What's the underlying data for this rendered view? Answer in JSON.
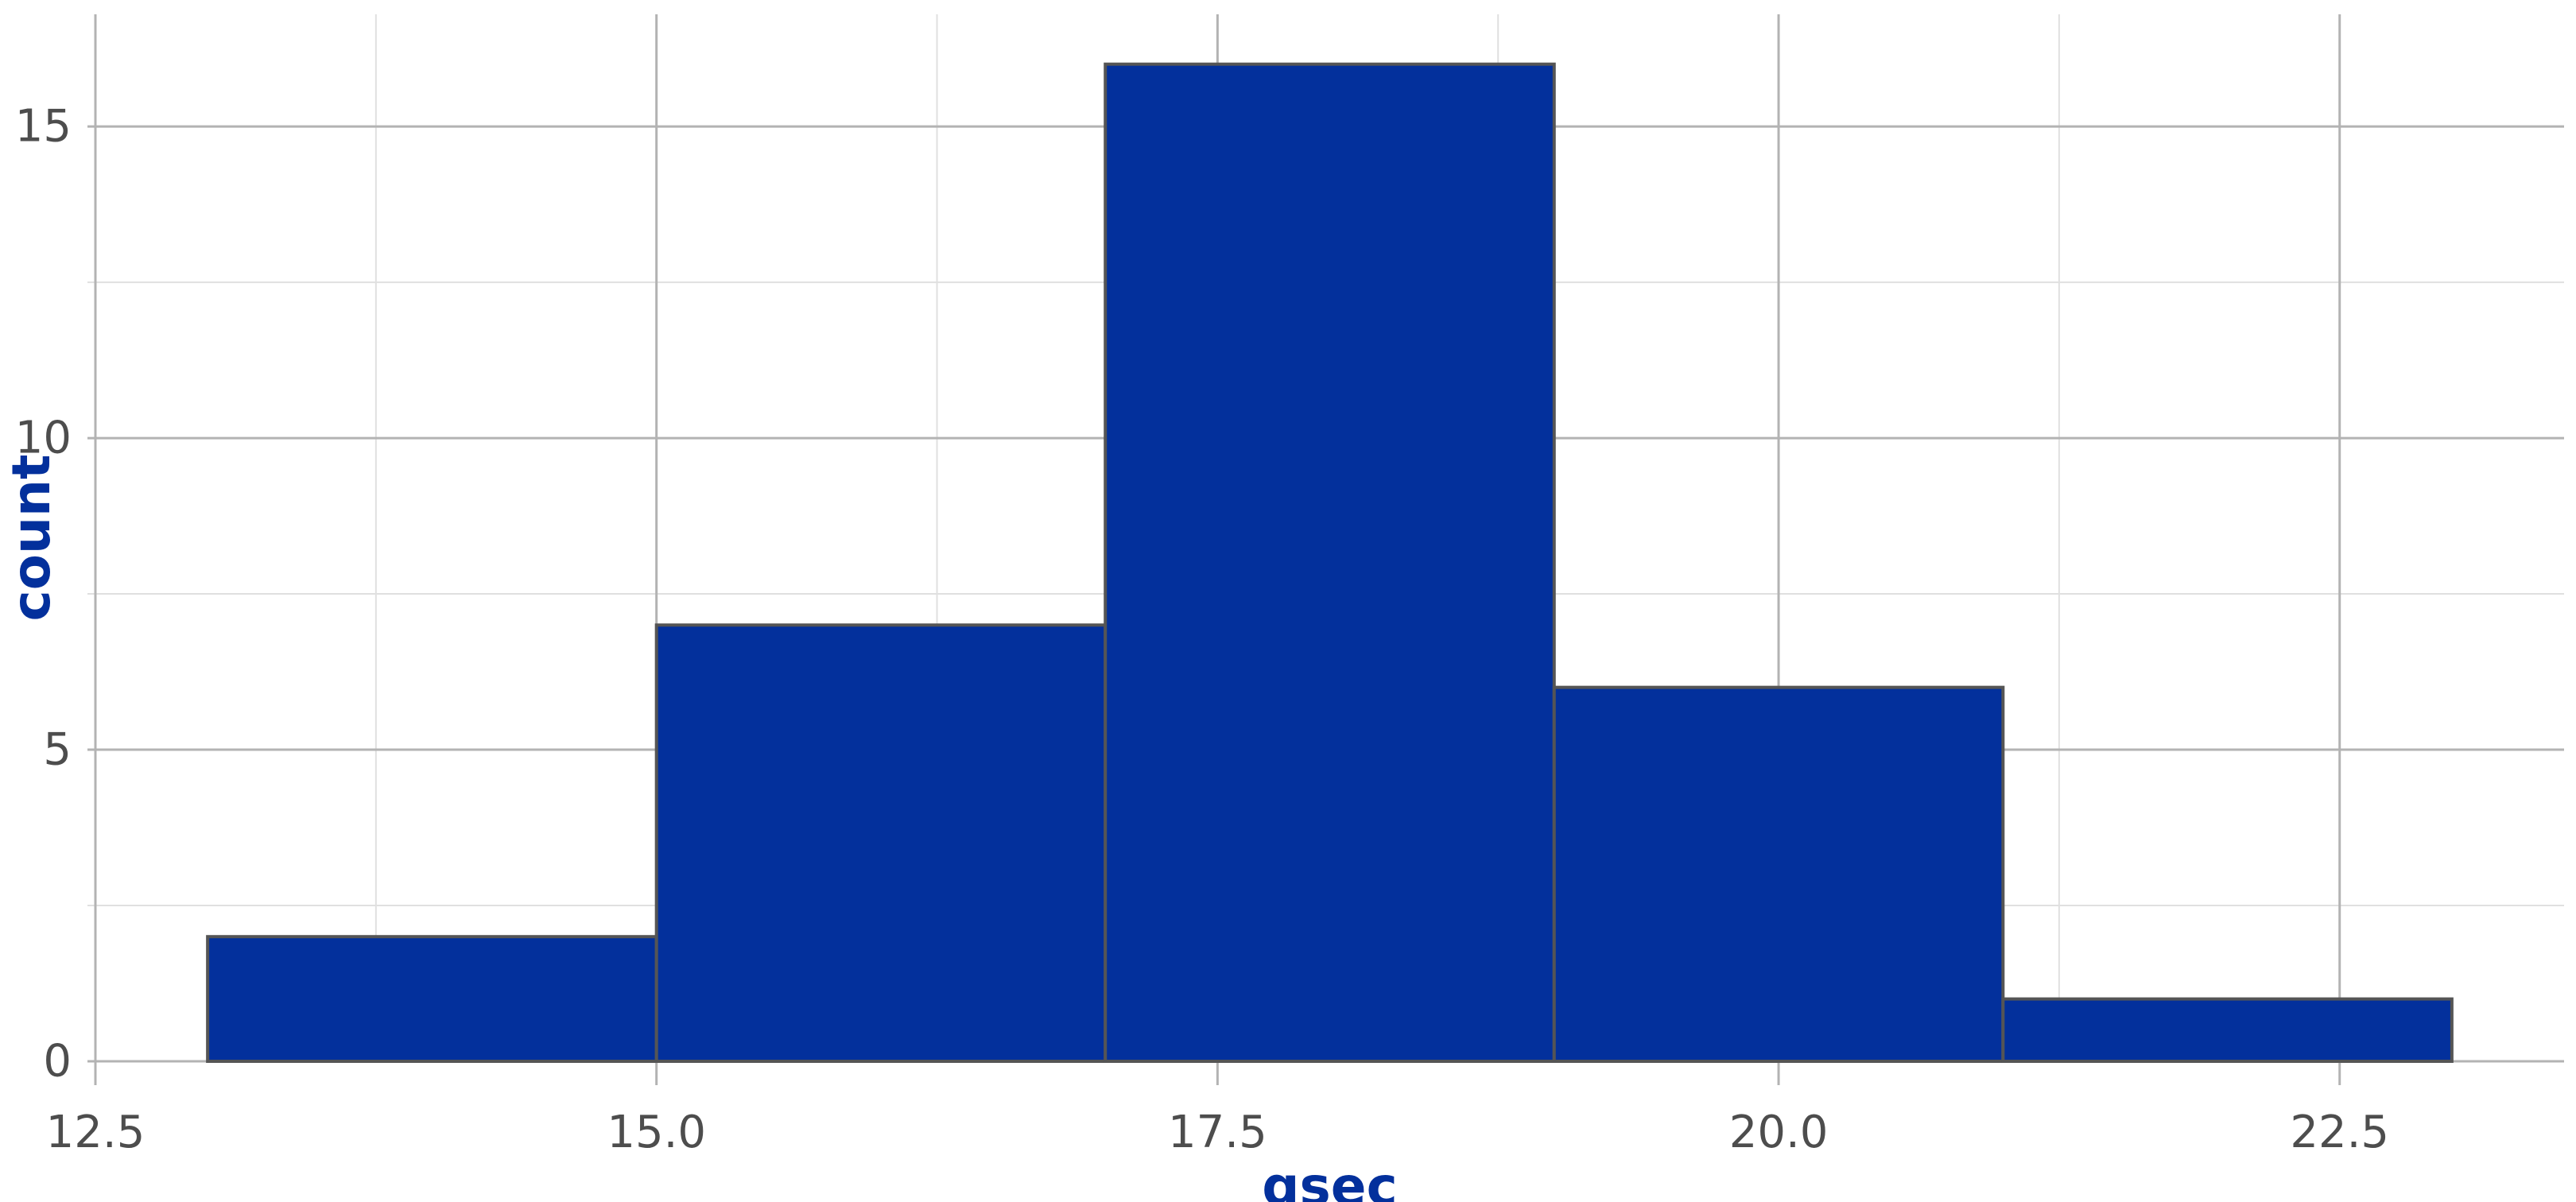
{
  "chart_data": {
    "type": "bar",
    "histogram": true,
    "x_label": "qsec",
    "y_label": "count",
    "bins": [
      {
        "start": 13,
        "end": 15,
        "count": 2
      },
      {
        "start": 15,
        "end": 17,
        "count": 7
      },
      {
        "start": 17,
        "end": 19,
        "count": 16
      },
      {
        "start": 19,
        "end": 21,
        "count": 6
      },
      {
        "start": 21,
        "end": 23,
        "count": 1
      }
    ],
    "categories": [
      "13-15",
      "15-17",
      "17-19",
      "19-21",
      "21-23"
    ],
    "values": [
      2,
      7,
      16,
      6,
      1
    ],
    "x_ticks": [
      12.5,
      15.0,
      17.5,
      20.0,
      22.5
    ],
    "x_tick_labels": [
      "12.5",
      "15.0",
      "17.5",
      "20.0",
      "22.5"
    ],
    "y_ticks": [
      0,
      5,
      10,
      15
    ],
    "y_tick_labels": [
      "0",
      "5",
      "10",
      "15"
    ],
    "x_range": [
      12.5,
      23.5
    ],
    "y_range": [
      0,
      16.8
    ],
    "grid": true,
    "legend": "none",
    "colors": {
      "bar_fill": "#03309c",
      "bar_outline": "#555555",
      "axis_title": "#03309c",
      "tick_label": "#4d4d4d",
      "major_grid": "#b3b3b3",
      "minor_grid": "#e0e0e0"
    }
  }
}
